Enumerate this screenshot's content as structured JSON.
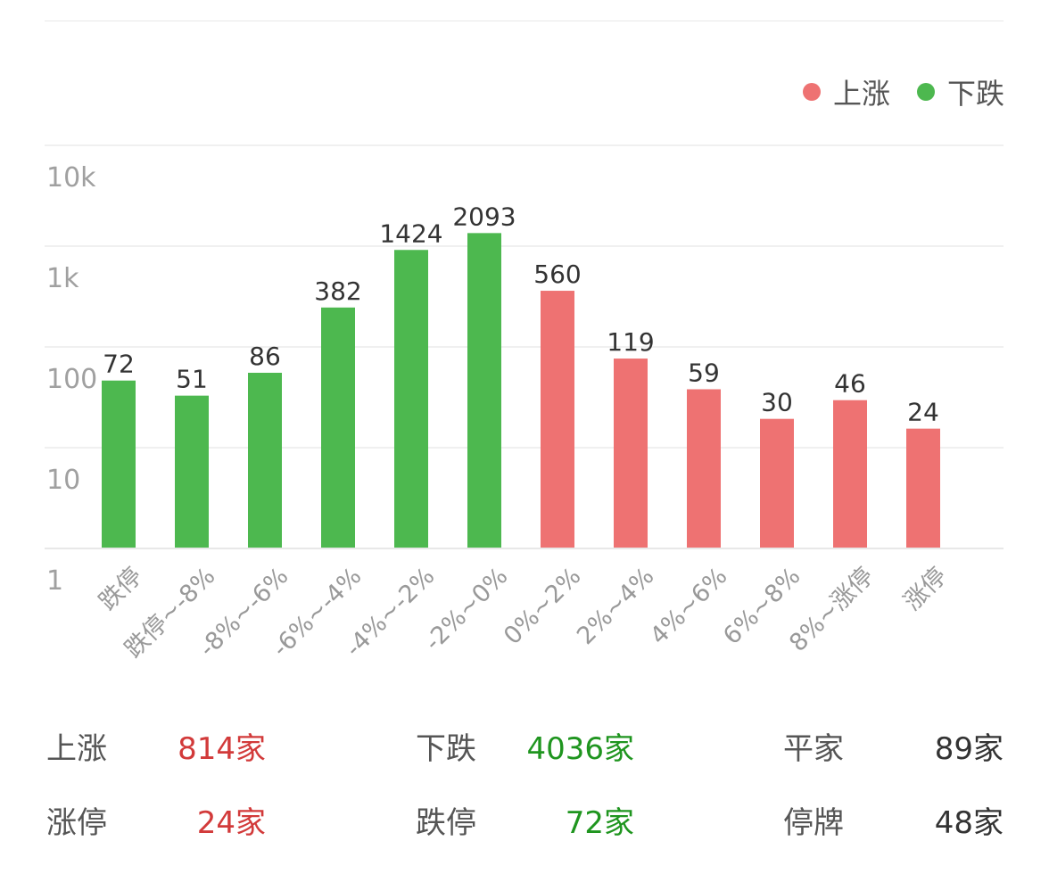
{
  "legend": [
    {
      "label": "上涨",
      "color": "#ee7272"
    },
    {
      "label": "下跌",
      "color": "#4db84f"
    }
  ],
  "chart_data": {
    "type": "bar",
    "scale": "log",
    "ylim": [
      1,
      10000
    ],
    "yticks": [
      {
        "value": 10000,
        "label": "10k"
      },
      {
        "value": 1000,
        "label": "1k"
      },
      {
        "value": 100,
        "label": "100"
      },
      {
        "value": 10,
        "label": "10"
      },
      {
        "value": 1,
        "label": "1"
      }
    ],
    "categories": [
      "跌停",
      "跌停~-8%",
      "-8%~-6%",
      "-6%~-4%",
      "-4%~-2%",
      "-2%~0%",
      "0%~2%",
      "2%~4%",
      "4%~6%",
      "6%~8%",
      "8%~涨停",
      "涨停"
    ],
    "values": [
      72,
      51,
      86,
      382,
      1424,
      2093,
      560,
      119,
      59,
      30,
      46,
      24
    ],
    "series_of": [
      "下跌",
      "下跌",
      "下跌",
      "下跌",
      "下跌",
      "下跌",
      "上涨",
      "上涨",
      "上涨",
      "上涨",
      "上涨",
      "上涨"
    ],
    "colors": {
      "上涨": "#ee7272",
      "下跌": "#4db84f"
    },
    "legend_position": "top-right",
    "grid": true
  },
  "stats": [
    [
      {
        "label": "上涨",
        "value": "814家",
        "color": "#d23a3a"
      },
      {
        "label": "下跌",
        "value": "4036家",
        "color": "#1f951f"
      },
      {
        "label": "平家",
        "value": "89家",
        "color": "#333333"
      }
    ],
    [
      {
        "label": "涨停",
        "value": "24家",
        "color": "#d23a3a"
      },
      {
        "label": "跌停",
        "value": "72家",
        "color": "#1f951f"
      },
      {
        "label": "停牌",
        "value": "48家",
        "color": "#333333"
      }
    ]
  ]
}
